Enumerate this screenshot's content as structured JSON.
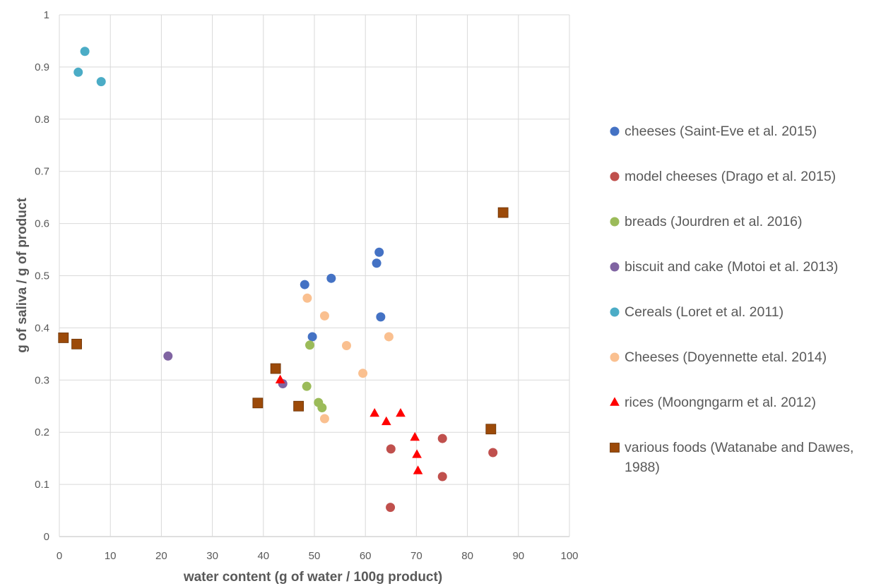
{
  "chart_data": {
    "type": "scatter",
    "title": "",
    "xlabel": "water content (g of water / 100g product)",
    "ylabel": "g of saliva / g of product",
    "xlim": [
      0,
      100
    ],
    "ylim": [
      0,
      1
    ],
    "x_ticks": [
      "0",
      "10",
      "20",
      "30",
      "40",
      "50",
      "60",
      "70",
      "80",
      "90",
      "100"
    ],
    "y_ticks": [
      "0",
      "0.1",
      "0.2",
      "0.3",
      "0.4",
      "0.5",
      "0.6",
      "0.7",
      "0.8",
      "0.9",
      "1"
    ],
    "grid": true,
    "legend_position": "right",
    "series": [
      {
        "name": "cheeses (Saint-Eve et al. 2015)",
        "marker": "circle",
        "color": "#4472C4",
        "points": [
          [
            48.1,
            0.483
          ],
          [
            53.3,
            0.495
          ],
          [
            62.2,
            0.524
          ],
          [
            62.7,
            0.545
          ],
          [
            63.0,
            0.421
          ],
          [
            49.6,
            0.383
          ]
        ]
      },
      {
        "name": "model cheeses (Drago et al. 2015)",
        "marker": "circle",
        "color": "#C0504D",
        "points": [
          [
            65.0,
            0.168
          ],
          [
            75.1,
            0.188
          ],
          [
            85.0,
            0.161
          ],
          [
            75.1,
            0.115
          ],
          [
            64.9,
            0.056
          ]
        ]
      },
      {
        "name": "breads (Jourdren et al. 2016)",
        "marker": "circle",
        "color": "#9BBB59",
        "points": [
          [
            49.1,
            0.367
          ],
          [
            48.5,
            0.288
          ],
          [
            50.8,
            0.257
          ],
          [
            51.5,
            0.247
          ]
        ]
      },
      {
        "name": "biscuit and cake (Motoi et al. 2013)",
        "marker": "circle",
        "color": "#8064A2",
        "points": [
          [
            21.3,
            0.346
          ],
          [
            43.8,
            0.293
          ]
        ]
      },
      {
        "name": "Cereals (Loret et al. 2011)",
        "marker": "circle",
        "color": "#4BACC6",
        "points": [
          [
            5.0,
            0.93
          ],
          [
            3.7,
            0.89
          ],
          [
            8.2,
            0.872
          ]
        ]
      },
      {
        "name": "Cheeses (Doyennette etal. 2014)",
        "marker": "circle",
        "color": "#FAC090",
        "points": [
          [
            48.6,
            0.457
          ],
          [
            52.0,
            0.423
          ],
          [
            56.3,
            0.366
          ],
          [
            64.6,
            0.383
          ],
          [
            59.5,
            0.313
          ],
          [
            52.0,
            0.226
          ]
        ]
      },
      {
        "name": "rices (Moongngarm et al. 2012)",
        "marker": "triangle",
        "color": "#FF0000",
        "points": [
          [
            43.3,
            0.3
          ],
          [
            61.8,
            0.236
          ],
          [
            64.1,
            0.22
          ],
          [
            66.9,
            0.236
          ],
          [
            69.7,
            0.19
          ],
          [
            70.1,
            0.157
          ],
          [
            70.3,
            0.126
          ]
        ]
      },
      {
        "name": "various foods (Watanabe and Dawes, 1988)",
        "marker": "square",
        "color": "#9C4A09",
        "points": [
          [
            0.8,
            0.381
          ],
          [
            3.4,
            0.369
          ],
          [
            42.4,
            0.322
          ],
          [
            38.9,
            0.256
          ],
          [
            46.9,
            0.25
          ],
          [
            87.0,
            0.621
          ],
          [
            84.6,
            0.206
          ]
        ]
      }
    ]
  }
}
